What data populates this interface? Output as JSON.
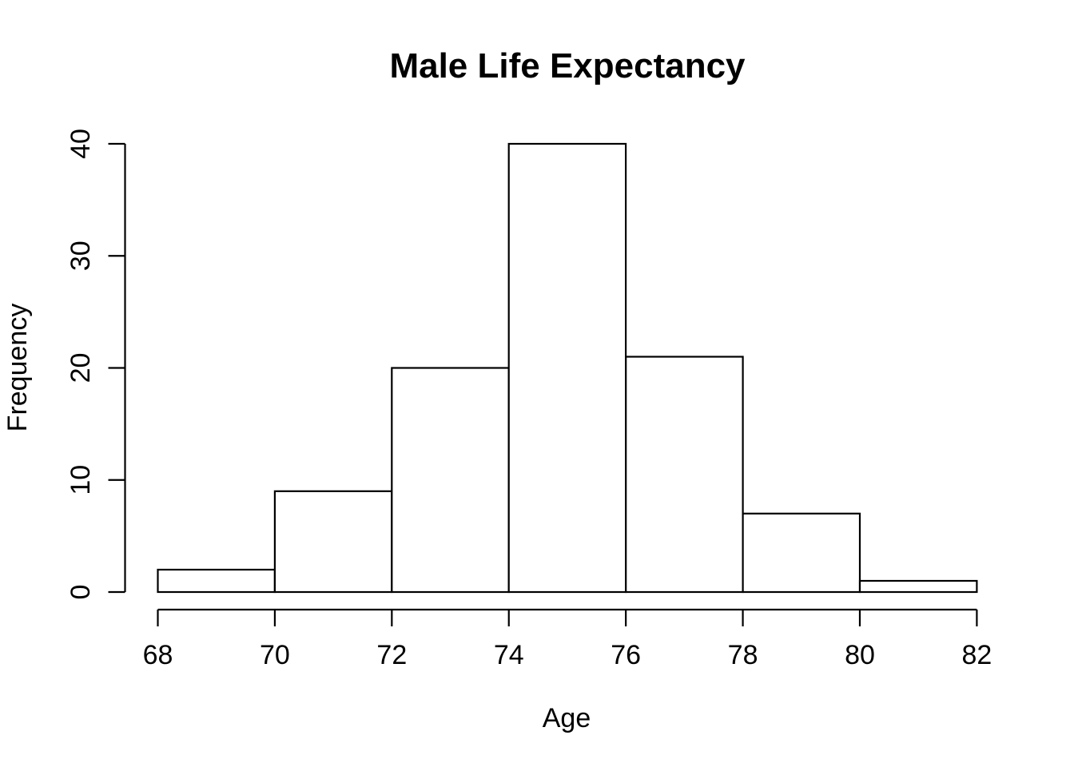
{
  "chart_data": {
    "type": "bar",
    "subtype": "histogram",
    "title": "Male Life Expectancy",
    "xlabel": "Age",
    "ylabel": "Frequency",
    "bin_start": 68,
    "bin_width": 2,
    "categories": [
      "68-70",
      "70-72",
      "72-74",
      "74-76",
      "76-78",
      "78-80",
      "80-82"
    ],
    "values": [
      2,
      9,
      20,
      40,
      21,
      7,
      1
    ],
    "x_ticks": [
      68,
      70,
      72,
      74,
      76,
      78,
      80,
      82
    ],
    "y_ticks": [
      0,
      10,
      20,
      30,
      40
    ],
    "xlim": [
      68,
      82
    ],
    "ylim": [
      0,
      40
    ],
    "grid": false,
    "legend": false,
    "bar_fill": "#ffffff",
    "bar_stroke": "#000000",
    "axis_color": "#000000",
    "background": "#ffffff"
  }
}
